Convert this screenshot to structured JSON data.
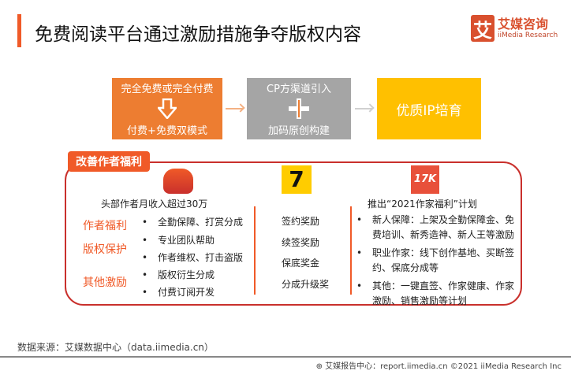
{
  "title": "免费阅读平台通过激励措施争夺版权内容",
  "logo": {
    "cn": "艾媒咨询",
    "en": "iiMedia Research",
    "mark": "艾"
  },
  "flow": [
    {
      "top": "完全免费或完全付费",
      "bottom": "付费+免费双模式",
      "icon": "down-arrow-icon",
      "color": "#ed7d31"
    },
    {
      "top": "CP方渠道引入",
      "bottom": "加码原创构建",
      "icon": "plus-icon",
      "color": "#a5a5a5"
    },
    {
      "label": "优质IP培育",
      "color": "#ffc000"
    }
  ],
  "panel": {
    "tag": "改善作者福利",
    "col1": {
      "headline": "头部作者月收入超过30万",
      "groups": [
        {
          "label": "作者福利",
          "items": [
            "全勤保障、打赏分成"
          ]
        },
        {
          "label": "版权保护",
          "items": [
            "专业团队帮助",
            "作者维权、打击盗版"
          ]
        },
        {
          "label": "其他激励",
          "items": [
            "版权衍生分成",
            "付费订阅开发"
          ]
        }
      ]
    },
    "col2": {
      "logo": "7",
      "items": [
        "签约奖励",
        "续签奖励",
        "保底奖金",
        "分成升级奖"
      ]
    },
    "col3": {
      "logo": "17K",
      "headline": "推出“2021作家福利”计划",
      "items": [
        "新人保障：上架及全勤保障金、免费培训、新秀造神、新人王等激励",
        "职业作家：线下创作基地、买断签约、保底分成等",
        "其他：一键直签、作家健康、作家激励、销售激励等计划"
      ]
    }
  },
  "source": "数据来源：艾媒数据中心（data.iimedia.cn）",
  "footer": "艾媒报告中心：report.iimedia.cn  ©2021  iiMedia Research Inc"
}
